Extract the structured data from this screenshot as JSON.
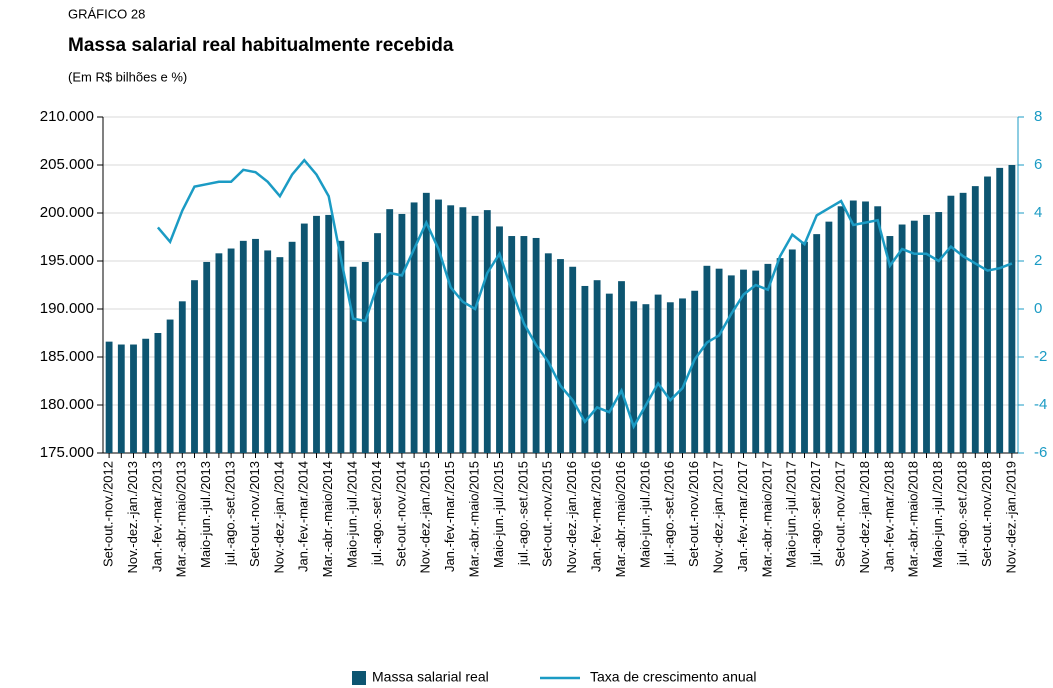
{
  "chart_data": {
    "type": "bar-line",
    "label": "GRÁFICO 28",
    "title": "Massa salarial real habitualmente recebida",
    "subtitle": "(Em R$ bilhões e %)",
    "categories": [
      "Set-out.-nov./2012",
      null,
      "Nov.-dez.-jan./2013",
      null,
      "Jan.-fev.-mar./2013",
      null,
      "Mar.-abr.-maio/2013",
      null,
      "Maio-jun.-jul./2013",
      null,
      "jul.-ago.-set./2013",
      null,
      "Set-out.-nov./2013",
      null,
      "Nov.-dez.-jan./2014",
      null,
      "Jan.-fev.-mar./2014",
      null,
      "Mar.-abr.-maio/2014",
      null,
      "Maio-jun.-jul./2014",
      null,
      "jul.-ago.-set./2014",
      null,
      "Set-out.-nov./2014",
      null,
      "Nov.-dez.-jan./2015",
      null,
      "Jan.-fev.-mar./2015",
      null,
      "Mar.-abr.-maio/2015",
      null,
      "Maio-jun.-jul./2015",
      null,
      "jul.-ago.-set./2015",
      null,
      "Set-out.-nov./2015",
      null,
      "Nov.-dez.-jan./2016",
      null,
      "Jan.-fev.-mar./2016",
      null,
      "Mar.-abr.-maio/2016",
      null,
      "Maio-jun.-jul./2016",
      null,
      "jul.-ago.-set./2016",
      null,
      "Set-out.-nov./2016",
      null,
      "Nov.-dez.-jan./2017",
      null,
      "Jan.-fev.-mar./2017",
      null,
      "Mar.-abr.-maio/2017",
      null,
      "Maio-jun.-jul./2017",
      null,
      "jul.-ago.-set./2017",
      null,
      "Set-out.-nov./2017",
      null,
      "Nov.-dez.-jan./2018",
      null,
      "Jan.-fev.-mar./2018",
      null,
      "Mar.-abr.-maio/2018",
      null,
      "Maio-jun.-jul./2018",
      null,
      "jul.-ago.-set./2018",
      null,
      "Set-out.-nov./2018",
      null,
      "Nov.-dez.-jan./2019"
    ],
    "series": [
      {
        "name": "Massa salarial real",
        "type": "bar",
        "color": "#0d5571",
        "values": [
          186600,
          186300,
          186300,
          186900,
          187500,
          188900,
          190800,
          193000,
          194900,
          195800,
          196300,
          197100,
          197300,
          196100,
          195400,
          197000,
          198900,
          199700,
          199800,
          197100,
          194400,
          194900,
          197900,
          200400,
          199900,
          201100,
          202100,
          201400,
          200800,
          200600,
          199700,
          200300,
          198600,
          197600,
          197600,
          197400,
          195800,
          195200,
          194400,
          192400,
          193000,
          191600,
          192900,
          190800,
          190500,
          191500,
          190700,
          191100,
          191900,
          194500,
          194200,
          193500,
          194100,
          194000,
          194700,
          195300,
          196200,
          197000,
          197800,
          199100,
          200700,
          201300,
          201200,
          200700,
          197600,
          198800,
          199200,
          199800,
          200100,
          201800,
          202100,
          202800,
          203800,
          204700,
          205000
        ]
      },
      {
        "name": "Taxa de crescimento anual",
        "type": "line",
        "axis": "y2",
        "color": "#1b9bc4",
        "values": [
          null,
          null,
          null,
          null,
          3.4,
          2.8,
          4.1,
          5.1,
          5.2,
          5.3,
          5.3,
          5.8,
          5.7,
          5.3,
          4.7,
          5.6,
          6.2,
          5.6,
          4.7,
          2.1,
          -0.4,
          -0.5,
          1.0,
          1.5,
          1.4,
          2.5,
          3.6,
          2.5,
          0.9,
          0.3,
          0.0,
          1.5,
          2.3,
          0.8,
          -0.6,
          -1.5,
          -2.2,
          -3.2,
          -3.8,
          -4.7,
          -4.1,
          -4.3,
          -3.4,
          -4.9,
          -4.0,
          -3.1,
          -3.8,
          -3.3,
          -2.1,
          -1.4,
          -1.1,
          -0.2,
          0.6,
          1.0,
          0.8,
          2.2,
          3.1,
          2.7,
          3.9,
          4.2,
          4.5,
          3.5,
          3.6,
          3.7,
          1.8,
          2.5,
          2.3,
          2.3,
          2.0,
          2.6,
          2.2,
          1.9,
          1.6,
          1.7,
          1.9
        ]
      }
    ],
    "ylim": [
      175000,
      210000
    ],
    "yticks": [
      {
        "value": 175000,
        "label": "175.000"
      },
      {
        "value": 180000,
        "label": "180.000"
      },
      {
        "value": 185000,
        "label": "185.000"
      },
      {
        "value": 190000,
        "label": "190.000"
      },
      {
        "value": 195000,
        "label": "195.000"
      },
      {
        "value": 200000,
        "label": "200.000"
      },
      {
        "value": 205000,
        "label": "205.000"
      },
      {
        "value": 210000,
        "label": "210.000"
      }
    ],
    "y2lim": [
      -6,
      8
    ],
    "y2ticks": [
      -6,
      -4,
      -2,
      0,
      2,
      4,
      6,
      8
    ],
    "grid": true
  }
}
